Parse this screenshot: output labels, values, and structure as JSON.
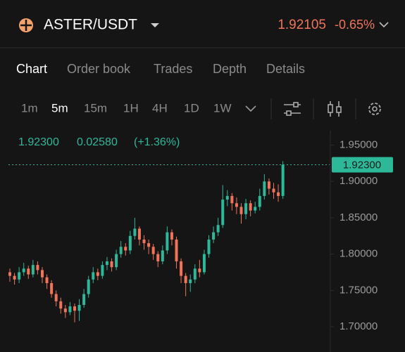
{
  "header": {
    "pair": "ASTER/USDT",
    "last_price": "1.92105",
    "change": "-0.65%"
  },
  "tabs": [
    "Chart",
    "Order book",
    "Trades",
    "Depth",
    "Details"
  ],
  "intervals": [
    "1m",
    "5m",
    "15m",
    "1H",
    "4H",
    "1D",
    "1W"
  ],
  "chart_data": {
    "type": "candlestick",
    "info": {
      "price": "1.92300",
      "change": "0.02580",
      "change_pct": "(+1.36%)"
    },
    "current_price": {
      "value": 1.923,
      "label": "1.92300"
    },
    "up_color": "#2eb89a",
    "down_color": "#f0745a",
    "ylim": [
      1.671,
      1.966
    ],
    "yticks": [
      {
        "value": 1.95,
        "label": "1.95000"
      },
      {
        "value": 1.9,
        "label": "1.90000"
      },
      {
        "value": 1.85,
        "label": "1.85000"
      },
      {
        "value": 1.8,
        "label": "1.80000"
      },
      {
        "value": 1.75,
        "label": "1.75000"
      },
      {
        "value": 1.7,
        "label": "1.70000"
      }
    ],
    "open": [
      1.775,
      1.77,
      1.765,
      1.775,
      1.78,
      1.772,
      1.785,
      1.778,
      1.768,
      1.76,
      1.745,
      1.735,
      1.725,
      1.72,
      1.728,
      1.722,
      1.73,
      1.745,
      1.765,
      1.775,
      1.77,
      1.785,
      1.79,
      1.782,
      1.8,
      1.81,
      1.805,
      1.825,
      1.835,
      1.82,
      1.815,
      1.81,
      1.8,
      1.79,
      1.805,
      1.83,
      1.82,
      1.79,
      1.77,
      1.76,
      1.765,
      1.78,
      1.775,
      1.8,
      1.82,
      1.83,
      1.84,
      1.875,
      1.88,
      1.87,
      1.865,
      1.855,
      1.87,
      1.86,
      1.865,
      1.88,
      1.9,
      1.89,
      1.885,
      1.88
    ],
    "high": [
      1.78,
      1.774,
      1.782,
      1.788,
      1.784,
      1.792,
      1.79,
      1.782,
      1.772,
      1.764,
      1.75,
      1.74,
      1.73,
      1.734,
      1.732,
      1.738,
      1.752,
      1.77,
      1.782,
      1.78,
      1.79,
      1.796,
      1.794,
      1.806,
      1.818,
      1.815,
      1.832,
      1.85,
      1.838,
      1.826,
      1.82,
      1.814,
      1.804,
      1.812,
      1.838,
      1.834,
      1.824,
      1.794,
      1.774,
      1.772,
      1.786,
      1.792,
      1.806,
      1.826,
      1.838,
      1.85,
      1.895,
      1.888,
      1.884,
      1.878,
      1.87,
      1.876,
      1.874,
      1.872,
      1.89,
      1.91,
      1.904,
      1.898,
      1.896,
      1.928
    ],
    "low": [
      1.762,
      1.758,
      1.76,
      1.77,
      1.766,
      1.768,
      1.772,
      1.76,
      1.752,
      1.74,
      1.728,
      1.718,
      1.712,
      1.716,
      1.706,
      1.708,
      1.726,
      1.74,
      1.76,
      1.764,
      1.766,
      1.778,
      1.776,
      1.778,
      1.795,
      1.798,
      1.8,
      1.82,
      1.812,
      1.806,
      1.8,
      1.792,
      1.782,
      1.786,
      1.8,
      1.812,
      1.78,
      1.76,
      1.742,
      1.748,
      1.76,
      1.768,
      1.772,
      1.795,
      1.815,
      1.825,
      1.836,
      1.866,
      1.86,
      1.855,
      1.842,
      1.848,
      1.852,
      1.856,
      1.86,
      1.875,
      1.882,
      1.876,
      1.872,
      1.876
    ],
    "close": [
      1.77,
      1.765,
      1.775,
      1.78,
      1.772,
      1.785,
      1.778,
      1.768,
      1.76,
      1.745,
      1.735,
      1.725,
      1.72,
      1.728,
      1.722,
      1.73,
      1.745,
      1.765,
      1.775,
      1.77,
      1.785,
      1.79,
      1.782,
      1.8,
      1.81,
      1.805,
      1.825,
      1.835,
      1.82,
      1.815,
      1.81,
      1.8,
      1.79,
      1.805,
      1.83,
      1.82,
      1.79,
      1.77,
      1.76,
      1.765,
      1.78,
      1.775,
      1.8,
      1.82,
      1.83,
      1.84,
      1.875,
      1.88,
      1.87,
      1.865,
      1.855,
      1.87,
      1.86,
      1.865,
      1.88,
      1.9,
      1.89,
      1.885,
      1.88,
      1.923
    ]
  }
}
